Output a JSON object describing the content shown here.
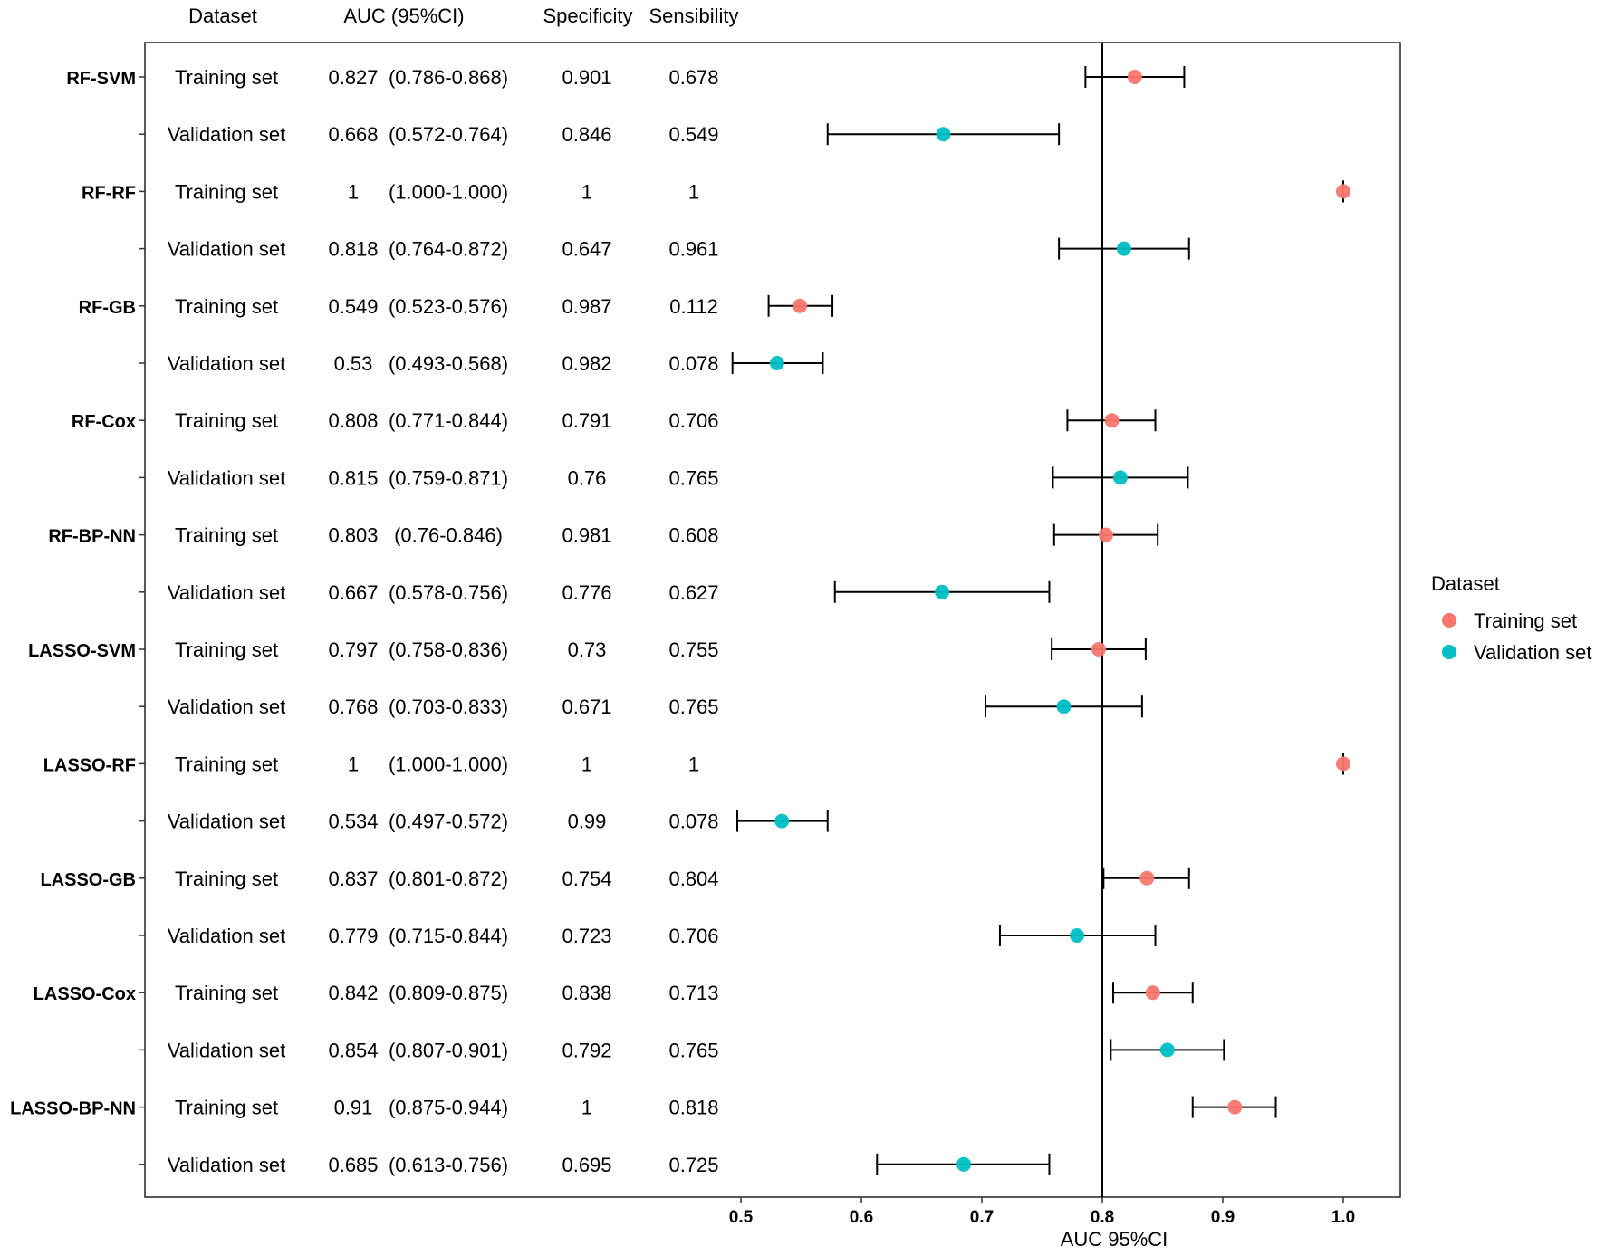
{
  "chart_data": {
    "type": "forest",
    "column_headers": {
      "dataset": "Dataset",
      "auc": "AUC (95%CI)",
      "specificity": "Specificity",
      "sensibility": "Sensibility"
    },
    "xlabel": "AUC 95%CI",
    "xlim": [
      0.5,
      1.0
    ],
    "xticks": [
      "0.5",
      "0.6",
      "0.7",
      "0.8",
      "0.9",
      "1.0"
    ],
    "reference_line": 0.8,
    "legend": {
      "title": "Dataset",
      "position": "right",
      "entries": [
        "Training set",
        "Validation set"
      ]
    },
    "colors": {
      "Training set": "#F8766D",
      "Validation set": "#00BFC4"
    },
    "rows": [
      {
        "model": "RF-SVM",
        "dataset": "Training set",
        "auc": 0.827,
        "auc_text": "0.827",
        "ci_text": "(0.786-0.868)",
        "lo": 0.786,
        "hi": 0.868,
        "spec": "0.901",
        "sens": "0.678"
      },
      {
        "model": "",
        "dataset": "Validation set",
        "auc": 0.668,
        "auc_text": "0.668",
        "ci_text": "(0.572-0.764)",
        "lo": 0.572,
        "hi": 0.764,
        "spec": "0.846",
        "sens": "0.549"
      },
      {
        "model": "RF-RF",
        "dataset": "Training set",
        "auc": 1,
        "auc_text": "1",
        "ci_text": "(1.000-1.000)",
        "lo": 1.0,
        "hi": 1.0,
        "spec": "1",
        "sens": "1"
      },
      {
        "model": "",
        "dataset": "Validation set",
        "auc": 0.818,
        "auc_text": "0.818",
        "ci_text": "(0.764-0.872)",
        "lo": 0.764,
        "hi": 0.872,
        "spec": "0.647",
        "sens": "0.961"
      },
      {
        "model": "RF-GB",
        "dataset": "Training set",
        "auc": 0.549,
        "auc_text": "0.549",
        "ci_text": "(0.523-0.576)",
        "lo": 0.523,
        "hi": 0.576,
        "spec": "0.987",
        "sens": "0.112"
      },
      {
        "model": "",
        "dataset": "Validation set",
        "auc": 0.53,
        "auc_text": "0.53",
        "ci_text": "(0.493-0.568)",
        "lo": 0.493,
        "hi": 0.568,
        "spec": "0.982",
        "sens": "0.078"
      },
      {
        "model": "RF-Cox",
        "dataset": "Training set",
        "auc": 0.808,
        "auc_text": "0.808",
        "ci_text": "(0.771-0.844)",
        "lo": 0.771,
        "hi": 0.844,
        "spec": "0.791",
        "sens": "0.706"
      },
      {
        "model": "",
        "dataset": "Validation set",
        "auc": 0.815,
        "auc_text": "0.815",
        "ci_text": "(0.759-0.871)",
        "lo": 0.759,
        "hi": 0.871,
        "spec": "0.76",
        "sens": "0.765"
      },
      {
        "model": "RF-BP-NN",
        "dataset": "Training set",
        "auc": 0.803,
        "auc_text": "0.803",
        "ci_text": "(0.76-0.846)",
        "lo": 0.76,
        "hi": 0.846,
        "spec": "0.981",
        "sens": "0.608"
      },
      {
        "model": "",
        "dataset": "Validation set",
        "auc": 0.667,
        "auc_text": "0.667",
        "ci_text": "(0.578-0.756)",
        "lo": 0.578,
        "hi": 0.756,
        "spec": "0.776",
        "sens": "0.627"
      },
      {
        "model": "LASSO-SVM",
        "dataset": "Training set",
        "auc": 0.797,
        "auc_text": "0.797",
        "ci_text": "(0.758-0.836)",
        "lo": 0.758,
        "hi": 0.836,
        "spec": "0.73",
        "sens": "0.755"
      },
      {
        "model": "",
        "dataset": "Validation set",
        "auc": 0.768,
        "auc_text": "0.768",
        "ci_text": "(0.703-0.833)",
        "lo": 0.703,
        "hi": 0.833,
        "spec": "0.671",
        "sens": "0.765"
      },
      {
        "model": "LASSO-RF",
        "dataset": "Training set",
        "auc": 1,
        "auc_text": "1",
        "ci_text": "(1.000-1.000)",
        "lo": 1.0,
        "hi": 1.0,
        "spec": "1",
        "sens": "1"
      },
      {
        "model": "",
        "dataset": "Validation set",
        "auc": 0.534,
        "auc_text": "0.534",
        "ci_text": "(0.497-0.572)",
        "lo": 0.497,
        "hi": 0.572,
        "spec": "0.99",
        "sens": "0.078"
      },
      {
        "model": "LASSO-GB",
        "dataset": "Training set",
        "auc": 0.837,
        "auc_text": "0.837",
        "ci_text": "(0.801-0.872)",
        "lo": 0.801,
        "hi": 0.872,
        "spec": "0.754",
        "sens": "0.804"
      },
      {
        "model": "",
        "dataset": "Validation set",
        "auc": 0.779,
        "auc_text": "0.779",
        "ci_text": "(0.715-0.844)",
        "lo": 0.715,
        "hi": 0.844,
        "spec": "0.723",
        "sens": "0.706"
      },
      {
        "model": "LASSO-Cox",
        "dataset": "Training set",
        "auc": 0.842,
        "auc_text": "0.842",
        "ci_text": "(0.809-0.875)",
        "lo": 0.809,
        "hi": 0.875,
        "spec": "0.838",
        "sens": "0.713"
      },
      {
        "model": "",
        "dataset": "Validation set",
        "auc": 0.854,
        "auc_text": "0.854",
        "ci_text": "(0.807-0.901)",
        "lo": 0.807,
        "hi": 0.901,
        "spec": "0.792",
        "sens": "0.765"
      },
      {
        "model": "LASSO-BP-NN",
        "dataset": "Training set",
        "auc": 0.91,
        "auc_text": "0.91",
        "ci_text": "(0.875-0.944)",
        "lo": 0.875,
        "hi": 0.944,
        "spec": "1",
        "sens": "0.818"
      },
      {
        "model": "",
        "dataset": "Validation set",
        "auc": 0.685,
        "auc_text": "0.685",
        "ci_text": "(0.613-0.756)",
        "lo": 0.613,
        "hi": 0.756,
        "spec": "0.695",
        "sens": "0.725"
      }
    ]
  }
}
